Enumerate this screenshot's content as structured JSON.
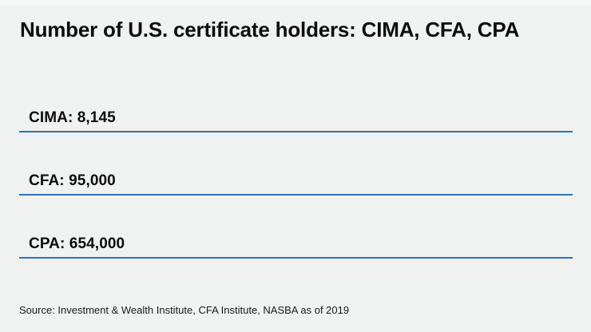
{
  "title": "Number of U.S. certificate holders: CIMA, CFA, CPA",
  "source": "Source: Investment & Wealth Institute, CFA Institute, NASBA as of 2019",
  "rows": [
    {
      "label": "CIMA: 8,145"
    },
    {
      "label": "CFA: 95,000"
    },
    {
      "label": "CPA: 654,000"
    }
  ],
  "colors": {
    "background": "#f0f1f1",
    "rule": "#2e74b5",
    "text": "#0d0d0d",
    "source_text": "#1a1a1a"
  },
  "chart_data": {
    "type": "table",
    "title": "Number of U.S. certificate holders: CIMA, CFA, CPA",
    "categories": [
      "CIMA",
      "CFA",
      "CPA"
    ],
    "values": [
      8145,
      95000,
      654000
    ],
    "value_labels": [
      "8,145",
      "95,000",
      "654,000"
    ],
    "annotations": [
      "Source: Investment & Wealth Institute, CFA Institute, NASBA as of 2019"
    ],
    "legend": false,
    "grid": false
  }
}
